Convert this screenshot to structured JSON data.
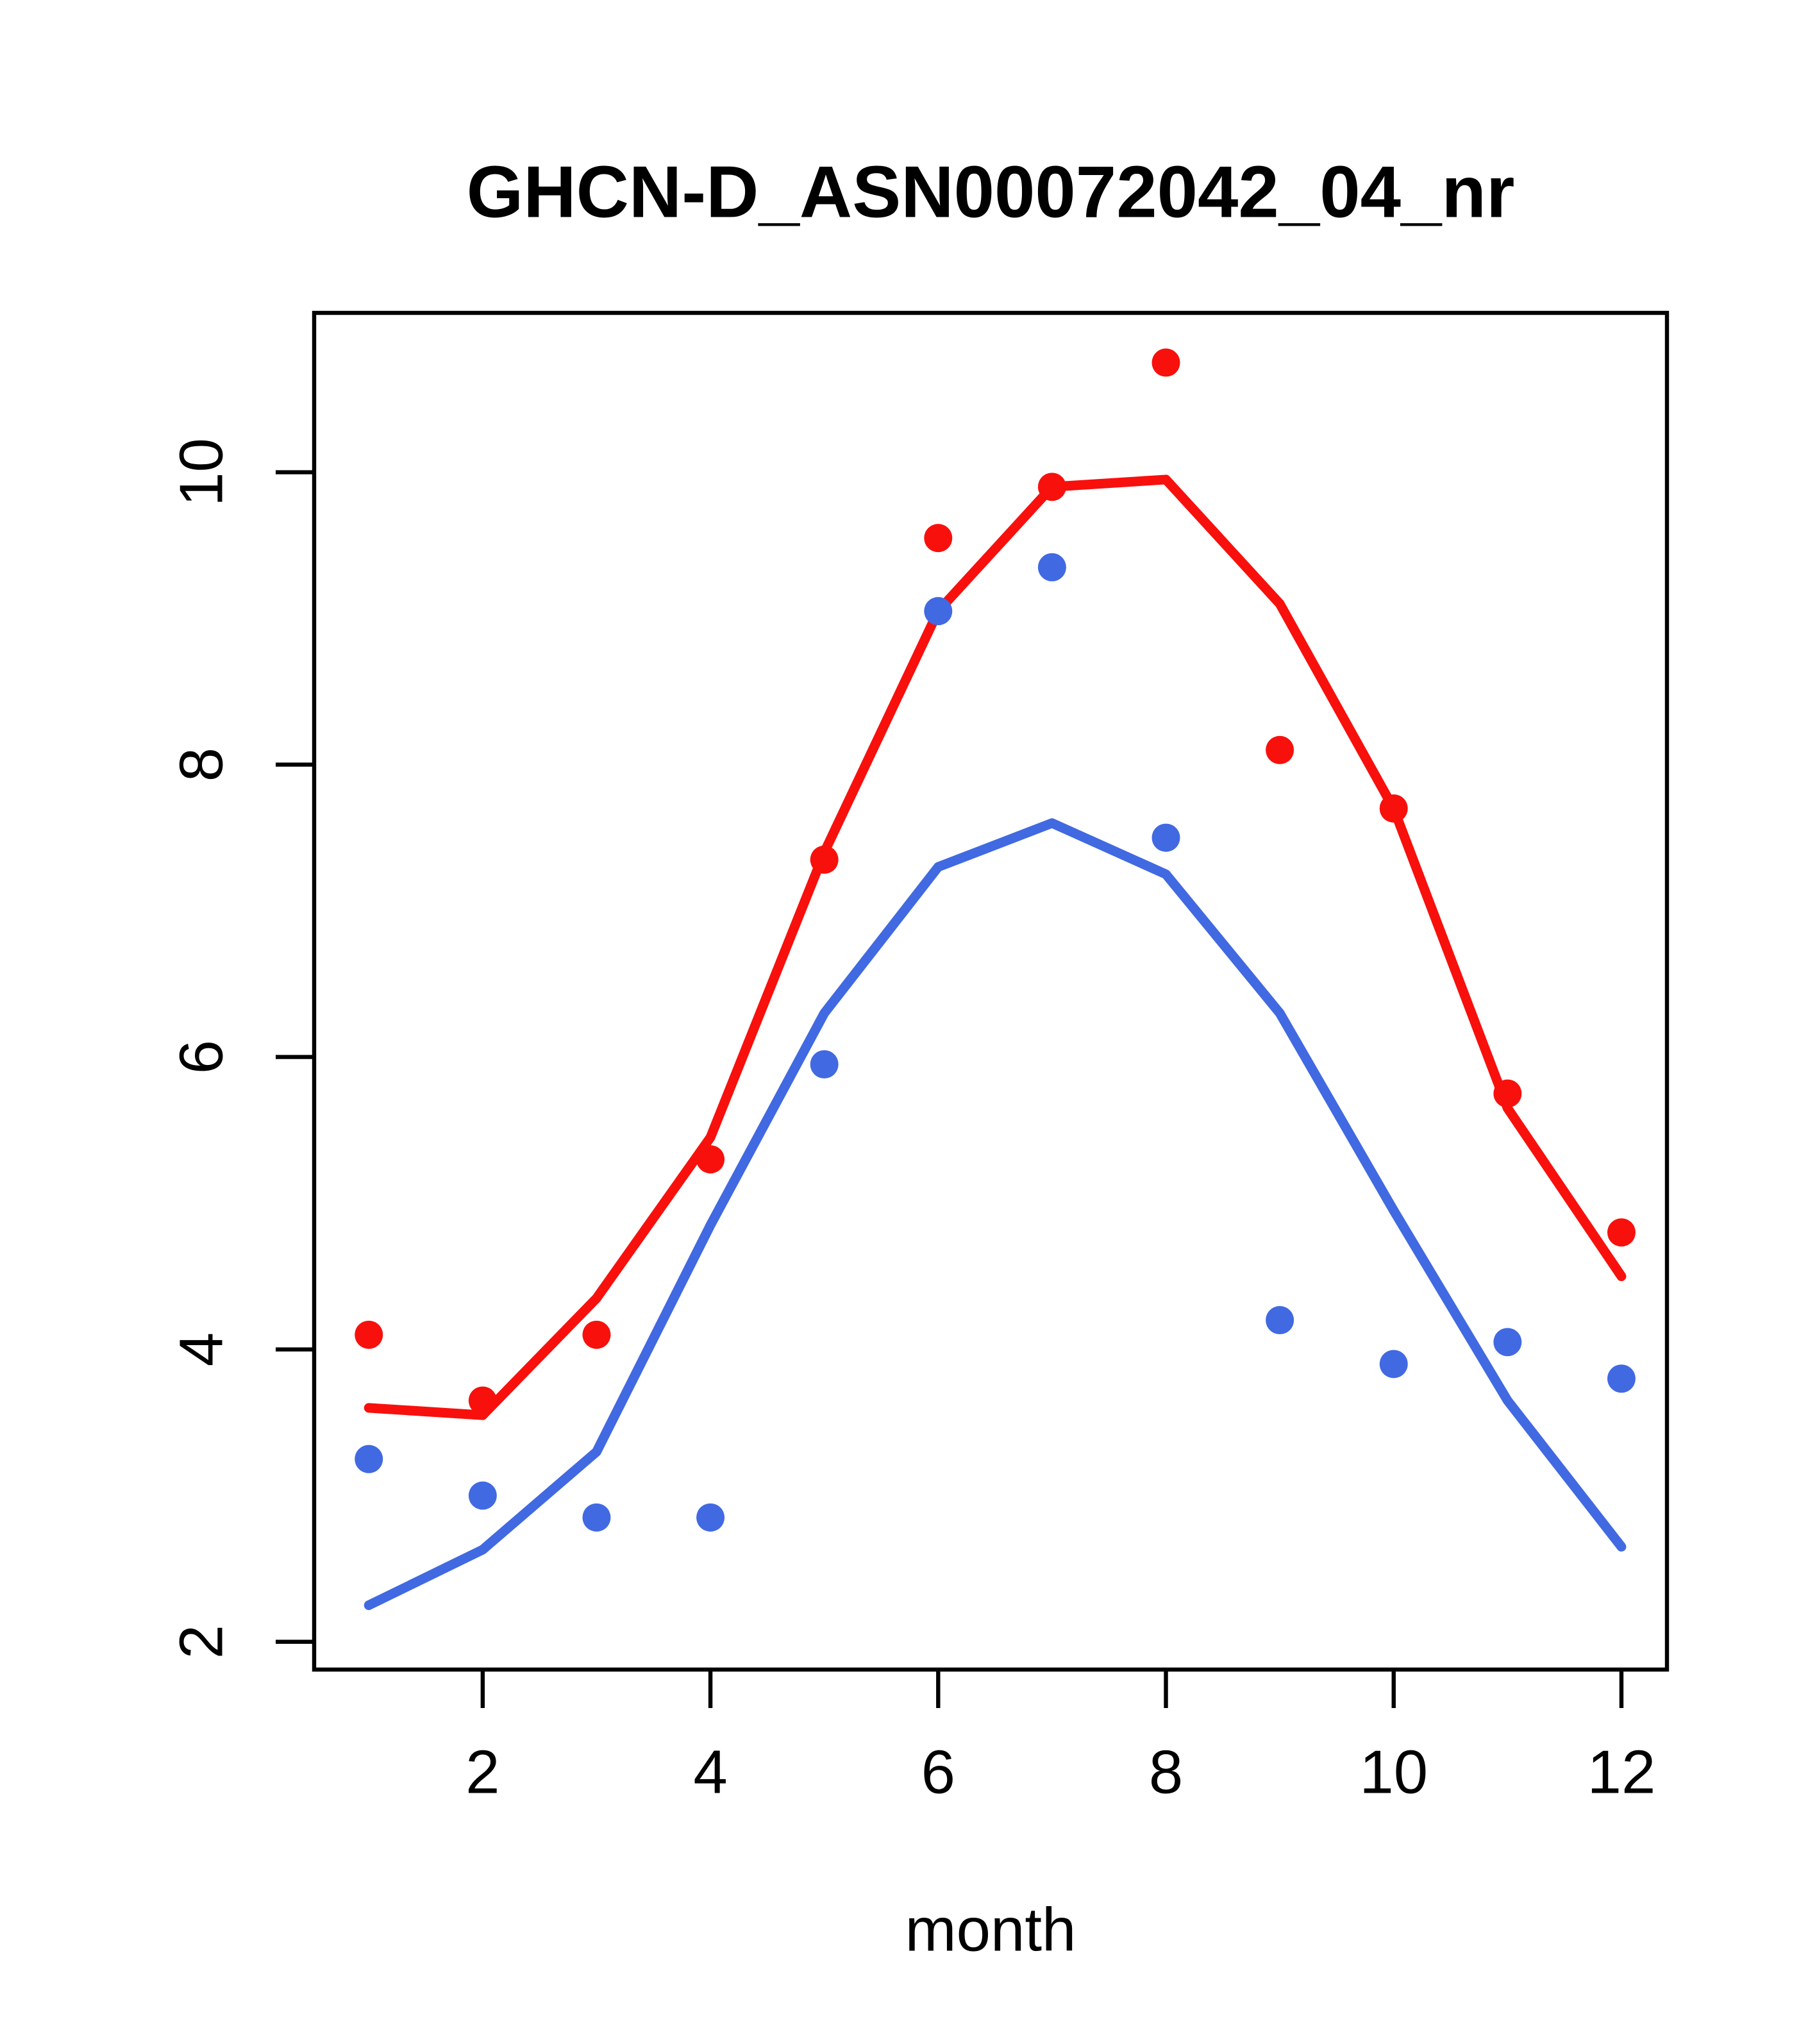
{
  "figure": {
    "background": "#ffffff"
  },
  "chart_data": {
    "type": "scatter",
    "title": "GHCN-D_ASN00072042_04_nr",
    "xlabel": "month",
    "ylabel": "",
    "grid": false,
    "legend_position": "none",
    "x": [
      1,
      2,
      3,
      4,
      5,
      6,
      7,
      8,
      9,
      10,
      11,
      12
    ],
    "xticks": [
      2,
      4,
      6,
      8,
      10,
      12
    ],
    "yticks": [
      2,
      4,
      6,
      8,
      10
    ],
    "xlim": [
      0.52,
      12.4
    ],
    "ylim": [
      1.81,
      11.09
    ],
    "axis_color": "#000000",
    "series": [
      {
        "name": "red-points",
        "kind": "scatter",
        "color": "#f8100d",
        "values": [
          4.1,
          3.65,
          4.1,
          5.3,
          7.35,
          9.55,
          9.9,
          10.75,
          8.1,
          7.7,
          5.75,
          4.8
        ]
      },
      {
        "name": "red-smooth-line",
        "kind": "line",
        "color": "#f8100d",
        "values": [
          3.6,
          3.55,
          4.35,
          5.45,
          7.4,
          9.05,
          9.9,
          9.95,
          9.1,
          7.7,
          5.65,
          4.5
        ]
      },
      {
        "name": "blue-points",
        "kind": "scatter",
        "color": "#4169e1",
        "values": [
          3.25,
          3.0,
          2.85,
          2.85,
          5.95,
          9.05,
          9.35,
          7.5,
          4.2,
          3.9,
          4.05,
          3.8
        ]
      },
      {
        "name": "blue-smooth-line",
        "kind": "line",
        "color": "#4169e1",
        "values": [
          2.25,
          2.63,
          3.3,
          4.85,
          6.3,
          7.3,
          7.6,
          7.25,
          6.3,
          4.95,
          3.65,
          2.65
        ]
      }
    ]
  }
}
